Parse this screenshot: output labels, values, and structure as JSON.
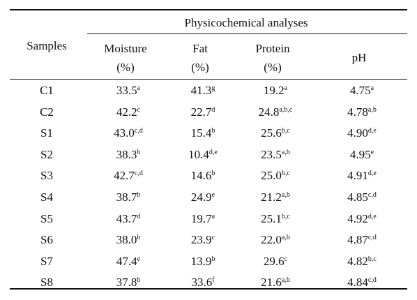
{
  "table": {
    "group_header": "Physicochemical analyses",
    "row_header": "Samples",
    "columns": [
      [
        "Moisture",
        "(%)"
      ],
      [
        "Fat",
        "(%)"
      ],
      [
        "Protein",
        "(%)"
      ],
      [
        "pH"
      ]
    ],
    "rows": [
      {
        "sample": "C1",
        "cells": [
          {
            "value": "33.5",
            "sup": "a"
          },
          {
            "value": "41.3",
            "sup": "g"
          },
          {
            "value": "19.2",
            "sup": "a"
          },
          {
            "value": "4.75",
            "sup": "a"
          }
        ]
      },
      {
        "sample": "C2",
        "cells": [
          {
            "value": "42.2",
            "sup": "c"
          },
          {
            "value": "22.7",
            "sup": "d"
          },
          {
            "value": "24.8",
            "sup": "a,b,c"
          },
          {
            "value": "4.78",
            "sup": "a,b"
          }
        ]
      },
      {
        "sample": "S1",
        "cells": [
          {
            "value": "43.0",
            "sup": "c,d"
          },
          {
            "value": "15.4",
            "sup": "b"
          },
          {
            "value": "25.6",
            "sup": "b,c"
          },
          {
            "value": "4.90",
            "sup": "d,e"
          }
        ]
      },
      {
        "sample": "S2",
        "cells": [
          {
            "value": "38.3",
            "sup": "b"
          },
          {
            "value": "10.4",
            "sup": "d,e"
          },
          {
            "value": "23.5",
            "sup": "a,b"
          },
          {
            "value": "4.95",
            "sup": "e"
          }
        ]
      },
      {
        "sample": "S3",
        "cells": [
          {
            "value": "42.7",
            "sup": "c,d"
          },
          {
            "value": "14.6",
            "sup": "b"
          },
          {
            "value": "25.0",
            "sup": "b,c"
          },
          {
            "value": "4.91",
            "sup": "d,e"
          }
        ]
      },
      {
        "sample": "S4",
        "cells": [
          {
            "value": "38.7",
            "sup": "b"
          },
          {
            "value": "24.9",
            "sup": "e"
          },
          {
            "value": "21.2",
            "sup": "a,b"
          },
          {
            "value": "4.85",
            "sup": "c,d"
          }
        ]
      },
      {
        "sample": "S5",
        "cells": [
          {
            "value": "43.7",
            "sup": "d"
          },
          {
            "value": "19.7",
            "sup": "a"
          },
          {
            "value": "25.1",
            "sup": "b,c"
          },
          {
            "value": "4.92",
            "sup": "d,e"
          }
        ]
      },
      {
        "sample": "S6",
        "cells": [
          {
            "value": "38.0",
            "sup": "b"
          },
          {
            "value": "23.9",
            "sup": "c"
          },
          {
            "value": "22.0",
            "sup": "a,b"
          },
          {
            "value": "4.87",
            "sup": "c,d"
          }
        ]
      },
      {
        "sample": "S7",
        "cells": [
          {
            "value": "47.4",
            "sup": "e"
          },
          {
            "value": "13.9",
            "sup": "b"
          },
          {
            "value": "29.6",
            "sup": "c"
          },
          {
            "value": "4.82",
            "sup": "b,c"
          }
        ]
      },
      {
        "sample": "S8",
        "cells": [
          {
            "value": "37.8",
            "sup": "b"
          },
          {
            "value": "33.6",
            "sup": "f"
          },
          {
            "value": "21.6",
            "sup": "a,b"
          },
          {
            "value": "4.84",
            "sup": "c,d"
          }
        ]
      }
    ]
  }
}
